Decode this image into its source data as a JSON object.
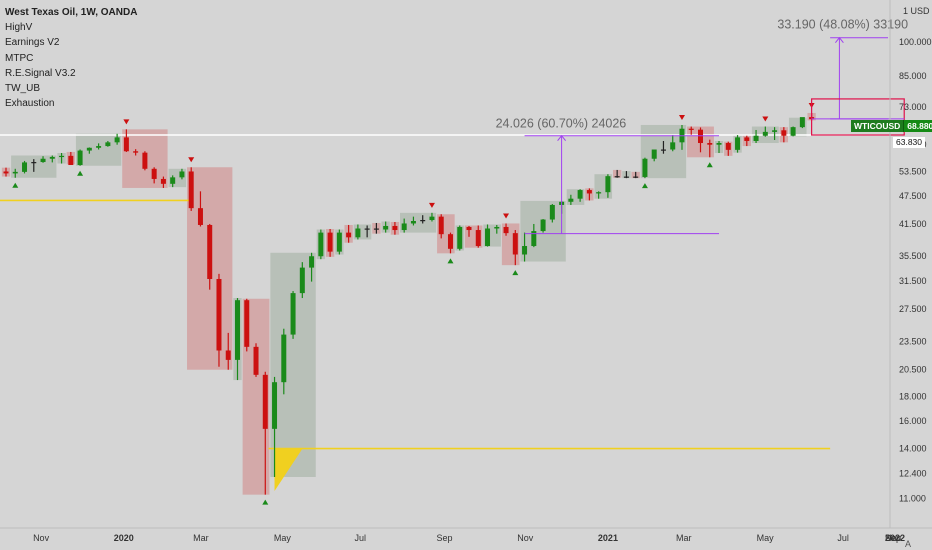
{
  "header": {
    "title": "West Texas Oil, 1W, OANDA",
    "indicators": [
      "HighV",
      "Earnings V2",
      "MTPC",
      "R.E.Signal V3.2",
      "TW_UB",
      "Exhaustion"
    ]
  },
  "price_axis": {
    "unit_label": "USD",
    "ticks": [
      "100.000",
      "85.000",
      "73.000",
      "61.000",
      "53.500",
      "47.500",
      "41.500",
      "35.500",
      "31.500",
      "27.500",
      "23.500",
      "20.500",
      "18.000",
      "16.000",
      "14.000",
      "12.400",
      "11.000"
    ]
  },
  "time_axis": {
    "ticks": [
      "Nov",
      "2020",
      "Mar",
      "May",
      "Jul",
      "Sep",
      "Nov",
      "2021",
      "Mar",
      "May",
      "Jul",
      "Sep",
      "Nov",
      "2022"
    ]
  },
  "current_price": {
    "symbol": "WTICOUSD",
    "value": "68.880",
    "color": "#158a15"
  },
  "level_marker": {
    "value": "63.830"
  },
  "annotations": {
    "move1": "24.026 (60.70%) 24026",
    "move2": "33.190 (48.08%) 33190"
  },
  "colors": {
    "up": "#1a8a1a",
    "down": "#cc1010",
    "neutral": "#222222",
    "level": "#f0d020",
    "measure": "#a040f0",
    "target_box": "#e0104a"
  },
  "chart_data": {
    "type": "candlestick",
    "title": "West Texas Oil, 1W, OANDA",
    "series": [
      {
        "name": "West Texas Oil",
        "ohlc": [
          {
            "x": "2019-10-07",
            "o": 53.5,
            "h": 54.5,
            "l": 52.2,
            "c": 53.0
          },
          {
            "x": "2019-10-14",
            "o": 53.0,
            "h": 54.2,
            "l": 51.9,
            "c": 53.4
          },
          {
            "x": "2019-10-21",
            "o": 53.4,
            "h": 56.3,
            "l": 53.0,
            "c": 55.9
          },
          {
            "x": "2019-10-28",
            "o": 55.9,
            "h": 56.8,
            "l": 53.4,
            "c": 56.0
          },
          {
            "x": "2019-11-04",
            "o": 56.0,
            "h": 57.6,
            "l": 55.8,
            "c": 56.9
          },
          {
            "x": "2019-11-11",
            "o": 56.9,
            "h": 57.8,
            "l": 55.9,
            "c": 57.4
          },
          {
            "x": "2019-11-18",
            "o": 57.4,
            "h": 58.5,
            "l": 55.6,
            "c": 57.7
          },
          {
            "x": "2019-11-25",
            "o": 57.7,
            "h": 58.8,
            "l": 55.4,
            "c": 55.2
          },
          {
            "x": "2019-12-02",
            "o": 55.2,
            "h": 59.5,
            "l": 55.0,
            "c": 59.2
          },
          {
            "x": "2019-12-09",
            "o": 59.2,
            "h": 60.1,
            "l": 58.3,
            "c": 60.0
          },
          {
            "x": "2019-12-16",
            "o": 60.0,
            "h": 61.3,
            "l": 59.5,
            "c": 60.5
          },
          {
            "x": "2019-12-23",
            "o": 60.5,
            "h": 62.0,
            "l": 60.3,
            "c": 61.6
          },
          {
            "x": "2019-12-30",
            "o": 61.6,
            "h": 64.2,
            "l": 60.9,
            "c": 63.1
          },
          {
            "x": "2020-01-06",
            "o": 63.1,
            "h": 65.6,
            "l": 58.8,
            "c": 59.0
          },
          {
            "x": "2020-01-13",
            "o": 59.0,
            "h": 59.6,
            "l": 57.8,
            "c": 58.6
          },
          {
            "x": "2020-01-20",
            "o": 58.6,
            "h": 59.0,
            "l": 53.8,
            "c": 54.2
          },
          {
            "x": "2020-01-27",
            "o": 54.2,
            "h": 54.6,
            "l": 50.5,
            "c": 51.6
          },
          {
            "x": "2020-02-03",
            "o": 51.6,
            "h": 52.2,
            "l": 49.4,
            "c": 50.4
          },
          {
            "x": "2020-02-10",
            "o": 50.4,
            "h": 52.5,
            "l": 49.6,
            "c": 52.0
          },
          {
            "x": "2020-02-17",
            "o": 52.0,
            "h": 54.2,
            "l": 51.5,
            "c": 53.5
          },
          {
            "x": "2020-02-24",
            "o": 53.5,
            "h": 54.6,
            "l": 44.2,
            "c": 44.8
          },
          {
            "x": "2020-03-02",
            "o": 44.8,
            "h": 48.6,
            "l": 41.0,
            "c": 41.3
          },
          {
            "x": "2020-03-09",
            "o": 41.3,
            "h": 41.5,
            "l": 30.2,
            "c": 31.8
          },
          {
            "x": "2020-03-16",
            "o": 31.8,
            "h": 32.6,
            "l": 20.8,
            "c": 22.5
          },
          {
            "x": "2020-03-23",
            "o": 22.5,
            "h": 24.5,
            "l": 20.5,
            "c": 21.5
          },
          {
            "x": "2020-03-30",
            "o": 21.5,
            "h": 29.0,
            "l": 19.5,
            "c": 28.7
          },
          {
            "x": "2020-04-06",
            "o": 28.7,
            "h": 28.9,
            "l": 22.4,
            "c": 22.9
          },
          {
            "x": "2020-04-13",
            "o": 22.9,
            "h": 23.3,
            "l": 19.8,
            "c": 20.0
          },
          {
            "x": "2020-04-20",
            "o": 20.0,
            "h": 20.3,
            "l": 11.2,
            "c": 15.4
          },
          {
            "x": "2020-04-27",
            "o": 15.4,
            "h": 19.8,
            "l": 12.2,
            "c": 19.3
          },
          {
            "x": "2020-05-04",
            "o": 19.3,
            "h": 25.0,
            "l": 18.2,
            "c": 24.3
          },
          {
            "x": "2020-05-11",
            "o": 24.3,
            "h": 30.0,
            "l": 23.8,
            "c": 29.7
          },
          {
            "x": "2020-05-18",
            "o": 29.7,
            "h": 34.5,
            "l": 29.0,
            "c": 33.6
          },
          {
            "x": "2020-05-25",
            "o": 33.6,
            "h": 36.1,
            "l": 31.4,
            "c": 35.5
          },
          {
            "x": "2020-06-01",
            "o": 35.5,
            "h": 40.4,
            "l": 35.0,
            "c": 39.8
          },
          {
            "x": "2020-06-08",
            "o": 39.8,
            "h": 40.5,
            "l": 35.4,
            "c": 36.3
          },
          {
            "x": "2020-06-15",
            "o": 36.3,
            "h": 40.4,
            "l": 35.8,
            "c": 39.8
          },
          {
            "x": "2020-06-22",
            "o": 39.8,
            "h": 41.3,
            "l": 37.9,
            "c": 38.9
          },
          {
            "x": "2020-06-29",
            "o": 38.9,
            "h": 41.4,
            "l": 38.5,
            "c": 40.6
          },
          {
            "x": "2020-07-06",
            "o": 40.6,
            "h": 41.2,
            "l": 38.9,
            "c": 40.6
          },
          {
            "x": "2020-07-13",
            "o": 40.6,
            "h": 41.7,
            "l": 39.6,
            "c": 40.4
          },
          {
            "x": "2020-07-20",
            "o": 40.4,
            "h": 42.0,
            "l": 39.8,
            "c": 41.1
          },
          {
            "x": "2020-07-27",
            "o": 41.1,
            "h": 41.9,
            "l": 39.4,
            "c": 40.3
          },
          {
            "x": "2020-08-03",
            "o": 40.3,
            "h": 42.6,
            "l": 39.8,
            "c": 41.6
          },
          {
            "x": "2020-08-10",
            "o": 41.6,
            "h": 43.0,
            "l": 41.2,
            "c": 42.1
          },
          {
            "x": "2020-08-17",
            "o": 42.1,
            "h": 43.3,
            "l": 41.6,
            "c": 42.3
          },
          {
            "x": "2020-08-24",
            "o": 42.3,
            "h": 43.8,
            "l": 42.0,
            "c": 43.0
          },
          {
            "x": "2020-08-31",
            "o": 43.0,
            "h": 43.5,
            "l": 38.7,
            "c": 39.5
          },
          {
            "x": "2020-09-07",
            "o": 39.5,
            "h": 39.8,
            "l": 36.0,
            "c": 36.8
          },
          {
            "x": "2020-09-14",
            "o": 36.8,
            "h": 41.2,
            "l": 36.5,
            "c": 40.9
          },
          {
            "x": "2020-09-21",
            "o": 40.9,
            "h": 41.1,
            "l": 39.0,
            "c": 40.3
          },
          {
            "x": "2020-09-28",
            "o": 40.3,
            "h": 41.2,
            "l": 37.0,
            "c": 37.3
          },
          {
            "x": "2020-10-05",
            "o": 37.3,
            "h": 41.4,
            "l": 37.2,
            "c": 40.6
          },
          {
            "x": "2020-10-12",
            "o": 40.6,
            "h": 41.3,
            "l": 39.6,
            "c": 40.9
          },
          {
            "x": "2020-10-19",
            "o": 40.9,
            "h": 41.6,
            "l": 39.2,
            "c": 39.7
          },
          {
            "x": "2020-10-26",
            "o": 39.7,
            "h": 40.3,
            "l": 34.0,
            "c": 35.8
          },
          {
            "x": "2020-11-02",
            "o": 35.8,
            "h": 39.8,
            "l": 34.6,
            "c": 37.3
          },
          {
            "x": "2020-11-09",
            "o": 37.3,
            "h": 41.5,
            "l": 37.1,
            "c": 40.1
          },
          {
            "x": "2020-11-16",
            "o": 40.1,
            "h": 42.5,
            "l": 39.8,
            "c": 42.4
          },
          {
            "x": "2020-11-23",
            "o": 42.4,
            "h": 45.7,
            "l": 41.8,
            "c": 45.5
          },
          {
            "x": "2020-11-30",
            "o": 45.5,
            "h": 46.4,
            "l": 43.6,
            "c": 46.2
          },
          {
            "x": "2020-12-07",
            "o": 46.2,
            "h": 47.8,
            "l": 45.5,
            "c": 46.9
          },
          {
            "x": "2020-12-14",
            "o": 46.9,
            "h": 49.1,
            "l": 46.2,
            "c": 48.9
          },
          {
            "x": "2020-12-21",
            "o": 48.9,
            "h": 49.3,
            "l": 46.5,
            "c": 48.1
          },
          {
            "x": "2020-12-28",
            "o": 48.1,
            "h": 48.6,
            "l": 46.9,
            "c": 48.4
          },
          {
            "x": "2021-01-04",
            "o": 48.4,
            "h": 52.8,
            "l": 47.1,
            "c": 52.3
          },
          {
            "x": "2021-01-11",
            "o": 52.3,
            "h": 53.9,
            "l": 51.9,
            "c": 52.1
          },
          {
            "x": "2021-01-18",
            "o": 52.1,
            "h": 53.6,
            "l": 51.8,
            "c": 52.2
          },
          {
            "x": "2021-01-25",
            "o": 52.2,
            "h": 53.4,
            "l": 51.8,
            "c": 52.1
          },
          {
            "x": "2021-02-01",
            "o": 52.1,
            "h": 57.2,
            "l": 51.8,
            "c": 56.9
          },
          {
            "x": "2021-02-08",
            "o": 56.9,
            "h": 59.0,
            "l": 56.2,
            "c": 59.5
          },
          {
            "x": "2021-02-15",
            "o": 59.5,
            "h": 62.0,
            "l": 58.3,
            "c": 59.5
          },
          {
            "x": "2021-02-22",
            "o": 59.5,
            "h": 63.8,
            "l": 59.0,
            "c": 61.6
          },
          {
            "x": "2021-03-01",
            "o": 61.6,
            "h": 67.0,
            "l": 59.4,
            "c": 65.8
          },
          {
            "x": "2021-03-08",
            "o": 65.8,
            "h": 66.5,
            "l": 63.9,
            "c": 65.5
          },
          {
            "x": "2021-03-15",
            "o": 65.5,
            "h": 66.2,
            "l": 58.7,
            "c": 61.4
          },
          {
            "x": "2021-03-22",
            "o": 61.4,
            "h": 62.4,
            "l": 57.3,
            "c": 60.9
          },
          {
            "x": "2021-03-29",
            "o": 60.9,
            "h": 62.0,
            "l": 58.5,
            "c": 61.4
          },
          {
            "x": "2021-04-05",
            "o": 61.4,
            "h": 61.8,
            "l": 57.7,
            "c": 59.4
          },
          {
            "x": "2021-04-12",
            "o": 59.4,
            "h": 63.8,
            "l": 58.6,
            "c": 63.1
          },
          {
            "x": "2021-04-19",
            "o": 63.1,
            "h": 63.6,
            "l": 60.5,
            "c": 62.0
          },
          {
            "x": "2021-04-26",
            "o": 62.0,
            "h": 65.4,
            "l": 61.4,
            "c": 63.6
          },
          {
            "x": "2021-05-03",
            "o": 63.6,
            "h": 66.5,
            "l": 63.3,
            "c": 64.8
          },
          {
            "x": "2021-05-10",
            "o": 64.8,
            "h": 66.3,
            "l": 62.3,
            "c": 65.3
          },
          {
            "x": "2021-05-17",
            "o": 65.3,
            "h": 66.3,
            "l": 61.6,
            "c": 63.6
          },
          {
            "x": "2021-05-24",
            "o": 63.6,
            "h": 66.5,
            "l": 63.4,
            "c": 66.3
          },
          {
            "x": "2021-05-31",
            "o": 66.3,
            "h": 69.4,
            "l": 66.0,
            "c": 69.6
          },
          {
            "x": "2021-06-07",
            "o": 69.6,
            "h": 71.0,
            "l": 68.5,
            "c": 68.9
          }
        ]
      }
    ],
    "horizontal_lines": [
      {
        "y": 46.5,
        "color": "#f0d020",
        "x_start": "2019-10-07",
        "x_end": "2020-02-24"
      },
      {
        "y": 14.0,
        "color": "#f0d020",
        "x_start": "2020-04-27",
        "x_end": "2021-06-21"
      },
      {
        "y": 63.83,
        "color": "#ffffff",
        "x_start": "2019-10-07",
        "x_end": "2022-01-03"
      }
    ],
    "measurements": [
      {
        "label": "24.026 (60.70%) 24026",
        "x": "2020-11-30",
        "from": 39.6,
        "to": 63.6,
        "x_start": "2020-11-02",
        "x_end": "2021-03-29"
      },
      {
        "label": "33.190 (48.08%) 33190",
        "x": "2021-06-28",
        "from": 69.0,
        "to": 102.2,
        "x_start": "2021-06-21",
        "x_end": "2021-08-30"
      }
    ],
    "target_box": {
      "x_start": "2021-06-07",
      "x_end": "2021-08-16",
      "y_low": 63.83,
      "y_high": 76.0,
      "inner_line": 69.0
    },
    "price_scale": "log",
    "ylim": [
      10.5,
      118
    ],
    "grid": false,
    "legend_position": "top-left"
  }
}
